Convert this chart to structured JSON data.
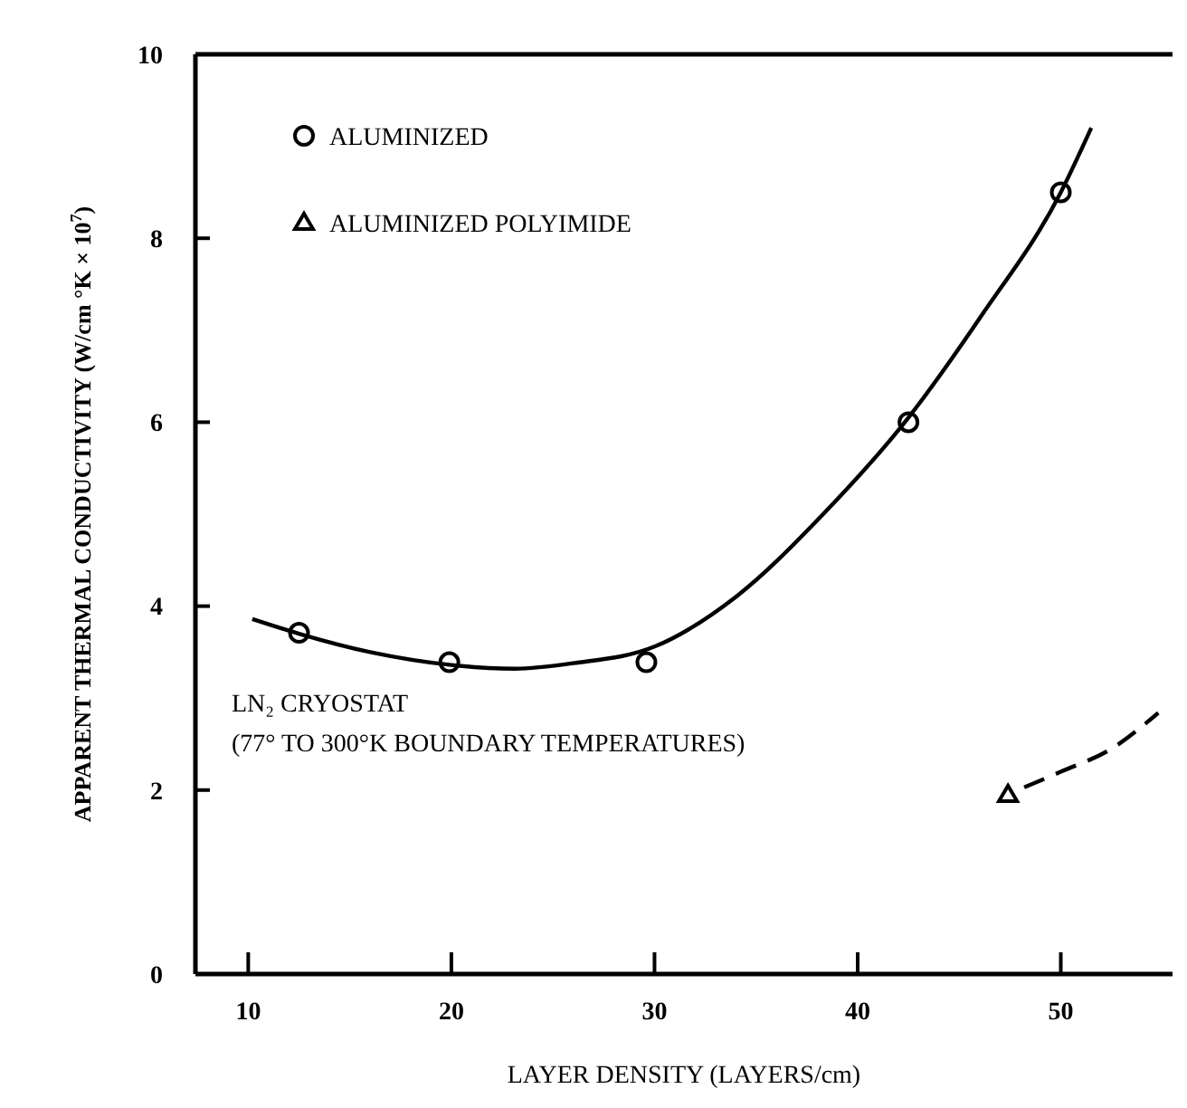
{
  "chart_data": {
    "type": "scatter",
    "xlabel": "LAYER DENSITY (LAYERS/cm)",
    "ylabel": "APPARENT THERMAL CONDUCTIVITY (W/cm °K × 10$^{7}$)",
    "xlim": [
      7.4,
      55.5
    ],
    "ylim": [
      0,
      10
    ],
    "xticks": [
      10,
      20,
      30,
      40,
      50
    ],
    "yticks": [
      0,
      2,
      4,
      6,
      8,
      10
    ],
    "grid": false,
    "legend": "top left",
    "annotations": [
      "LN₂ CRYOSTAT",
      "(77°  TO 300°K BOUNDARY TEMPERATURES)"
    ],
    "series": [
      {
        "name": "ALUMINIZED",
        "marker": "circle",
        "color": "#000000",
        "x": [
          12.5,
          19.9,
          29.6,
          42.5,
          50
        ],
        "values": [
          3.71,
          3.39,
          3.39,
          6.0,
          8.5
        ]
      },
      {
        "name": "ALUMINIZED POLYIMIDE",
        "marker": "triangle",
        "color": "#000000",
        "x": [
          47.4
        ],
        "values": [
          1.95
        ]
      },
      {
        "type": "line",
        "marker": "none",
        "line_style": "solid",
        "color": "#000000",
        "x": [
          10.2,
          12.5,
          16,
          20,
          23.1,
          26,
          30,
          34,
          38.3,
          42.5,
          46.1,
          50,
          51.5
        ],
        "values": [
          3.86,
          3.7,
          3.5,
          3.36,
          3.32,
          3.38,
          3.56,
          4.1,
          5.0,
          6.05,
          7.16,
          8.5,
          9.2
        ]
      },
      {
        "type": "line",
        "marker": "none",
        "line_style": "dashed",
        "color": "#000000",
        "x": [
          48.2,
          50,
          52.5,
          54.8
        ],
        "values": [
          2.03,
          2.2,
          2.45,
          2.84
        ]
      }
    ]
  }
}
